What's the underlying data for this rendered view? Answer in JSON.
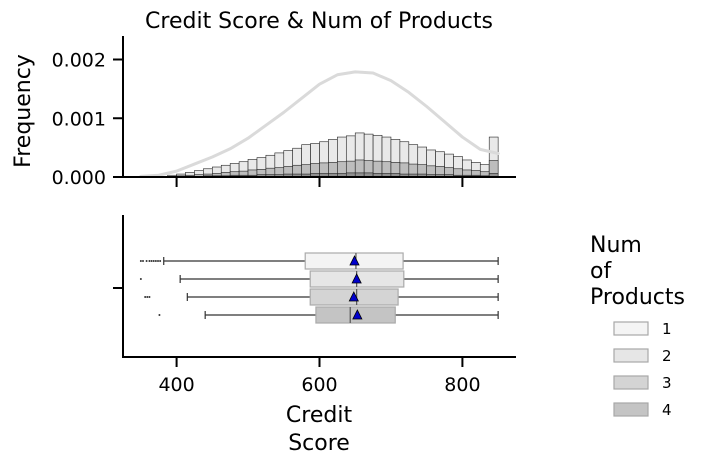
{
  "chart_data": [
    {
      "type": "histogram",
      "title": "Credit Score & Num of Products",
      "ylabel": "Frequency",
      "xlim": [
        325,
        875
      ],
      "ylim": [
        0,
        0.0024
      ],
      "yticks": [
        "0.000",
        "0.001",
        "0.002"
      ],
      "ytick_values": [
        0,
        0.001,
        0.002
      ],
      "xticks": [
        400,
        600,
        800
      ],
      "bin_width": 12.5,
      "bins_left": [
        350,
        362.5,
        375,
        387.5,
        400,
        412.5,
        425,
        437.5,
        450,
        462.5,
        475,
        487.5,
        500,
        512.5,
        525,
        537.5,
        550,
        562.5,
        575,
        587.5,
        600,
        612.5,
        625,
        637.5,
        650,
        662.5,
        675,
        687.5,
        700,
        712.5,
        725,
        737.5,
        750,
        762.5,
        775,
        787.5,
        800,
        812.5,
        825,
        837.5
      ],
      "series": [
        {
          "values": [
            2e-05,
            0,
            0,
            3e-05,
            5e-05,
            8e-05,
            0.00011,
            0.00014,
            0.00017,
            0.0002,
            0.00023,
            0.00026,
            0.0003,
            0.00033,
            0.00037,
            0.00041,
            0.00045,
            0.00049,
            0.00055,
            0.00057,
            0.0006,
            0.00064,
            0.00068,
            0.0007,
            0.00075,
            0.00073,
            0.00071,
            0.00068,
            0.00064,
            0.0006,
            0.00055,
            0.00051,
            0.00046,
            0.00043,
            0.00039,
            0.00035,
            0.00029,
            0.00025,
            0.00021,
            0.00068
          ]
        },
        {
          "values": [
            0,
            0,
            0,
            1e-05,
            2e-05,
            3e-05,
            4e-05,
            5e-05,
            6e-05,
            8e-05,
            9e-05,
            0.0001,
            0.00012,
            0.00013,
            0.00015,
            0.00016,
            0.00018,
            0.0002,
            0.00021,
            0.00023,
            0.00024,
            0.00025,
            0.00026,
            0.00027,
            0.00029,
            0.00028,
            0.00027,
            0.00026,
            0.00025,
            0.00024,
            0.00022,
            0.00021,
            0.00019,
            0.00018,
            0.00016,
            0.00014,
            0.00012,
            0.00011,
            9e-05,
            0.00028
          ]
        },
        {
          "values": [
            0,
            0,
            0,
            0,
            1e-05,
            1e-05,
            1e-05,
            2e-05,
            2e-05,
            2e-05,
            3e-05,
            3e-05,
            3e-05,
            4e-05,
            4e-05,
            4e-05,
            5e-05,
            5e-05,
            5e-05,
            6e-05,
            6e-05,
            6e-05,
            6e-05,
            7e-05,
            7e-05,
            7e-05,
            6e-05,
            6e-05,
            6e-05,
            5e-05,
            5e-05,
            5e-05,
            4e-05,
            4e-05,
            4e-05,
            3e-05,
            3e-05,
            3e-05,
            2e-05,
            6e-05
          ]
        },
        {
          "values": [
            0,
            0,
            0,
            0,
            0,
            0,
            0,
            0,
            0,
            0,
            0,
            0,
            0,
            0,
            1e-05,
            1e-05,
            1e-05,
            1e-05,
            1e-05,
            1e-05,
            1e-05,
            1e-05,
            1e-05,
            1e-05,
            1e-05,
            1e-05,
            1e-05,
            1e-05,
            1e-05,
            1e-05,
            1e-05,
            1e-05,
            1e-05,
            1e-05,
            1e-05,
            1e-05,
            0,
            0,
            0,
            1e-05
          ]
        }
      ],
      "kde_x": [
        350,
        375,
        400,
        425,
        450,
        475,
        500,
        525,
        550,
        575,
        600,
        625,
        650,
        675,
        700,
        725,
        750,
        775,
        800,
        825,
        850
      ],
      "kde_y": [
        1e-05,
        3e-05,
        0.0001,
        0.00022,
        0.00034,
        0.00048,
        0.00066,
        0.00088,
        0.0011,
        0.00134,
        0.00158,
        0.00174,
        0.00179,
        0.00177,
        0.00164,
        0.00144,
        0.0012,
        0.00094,
        0.00068,
        0.00047,
        0.0004
      ]
    },
    {
      "type": "boxplot",
      "xlabel": "Credit\nScore",
      "xticks": [
        400,
        600,
        800
      ],
      "series": [
        {
          "name": "1",
          "whisker_low": 382,
          "q1": 580,
          "median": 651,
          "q3": 717,
          "whisker_high": 850,
          "mean": 649,
          "outliers": [
            350,
            353,
            358,
            362,
            365,
            368,
            371,
            374,
            377
          ]
        },
        {
          "name": "2",
          "whisker_low": 405,
          "q1": 587,
          "median": 652,
          "q3": 718,
          "whisker_high": 850,
          "mean": 652,
          "outliers": [
            350
          ]
        },
        {
          "name": "3",
          "whisker_low": 415,
          "q1": 587,
          "median": 652,
          "q3": 710,
          "whisker_high": 850,
          "mean": 648,
          "outliers": [
            356,
            359,
            362
          ]
        },
        {
          "name": "4",
          "whisker_low": 440,
          "q1": 595,
          "median": 643,
          "q3": 706,
          "whisker_high": 850,
          "mean": 653,
          "outliers": [
            376
          ]
        }
      ]
    }
  ],
  "legend": {
    "title": "Num\nof\nProducts",
    "placement": "right",
    "items": [
      {
        "label": "1",
        "color": "#f4f4f4"
      },
      {
        "label": "2",
        "color": "#e6e6e6"
      },
      {
        "label": "3",
        "color": "#d4d4d4"
      },
      {
        "label": "4",
        "color": "#c4c4c4"
      }
    ]
  },
  "colors": {
    "hist_fill": [
      "#e9e9e9",
      "#bdbdbd",
      "#909090",
      "#6a6a6a"
    ],
    "kde": [
      "#dadada",
      "#a8a8a8",
      "#7a7a7a",
      "#555555"
    ],
    "box_fill": [
      "#f4f4f4",
      "#e6e6e6",
      "#d4d4d4",
      "#c4c4c4"
    ],
    "mean_marker": "#0000cc"
  }
}
